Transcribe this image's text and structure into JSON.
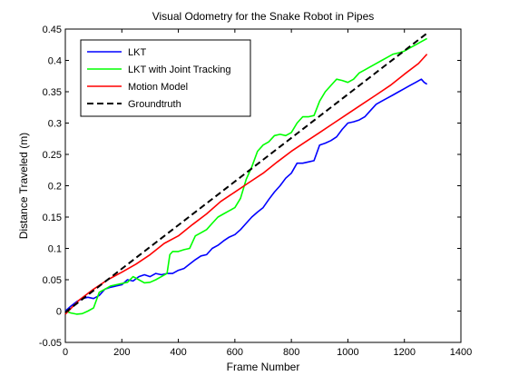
{
  "figure": {
    "title": "Visual Odometry for the Snake Robot in Pipes"
  },
  "chart_data": {
    "type": "line",
    "title": "Visual Odometry for the Snake Robot in Pipes",
    "xlabel": "Frame Number",
    "ylabel": "Distance Traveled (m)",
    "xlim": [
      0,
      1400
    ],
    "ylim": [
      -0.05,
      0.45
    ],
    "xticks": [
      0,
      200,
      400,
      600,
      800,
      1000,
      1200,
      1400
    ],
    "xtick_labels": [
      "0",
      "200",
      "400",
      "600",
      "800",
      "1000",
      "1200",
      "1400"
    ],
    "yticks": [
      -0.05,
      0,
      0.05,
      0.1,
      0.15,
      0.2,
      0.25,
      0.3,
      0.35,
      0.4,
      0.45
    ],
    "ytick_labels": [
      "-0.05",
      "0",
      "0.05",
      "0.1",
      "0.15",
      "0.2",
      "0.25",
      "0.3",
      "0.35",
      "0.4",
      "0.45"
    ],
    "grid": false,
    "legend_position": "top-left",
    "series": [
      {
        "name": "LKT",
        "color": "#0000ff",
        "dash": "solid",
        "x": [
          0,
          20,
          40,
          60,
          80,
          100,
          120,
          140,
          160,
          180,
          200,
          220,
          240,
          260,
          280,
          300,
          320,
          340,
          360,
          380,
          400,
          420,
          440,
          460,
          480,
          500,
          520,
          540,
          560,
          580,
          600,
          620,
          640,
          660,
          680,
          700,
          720,
          740,
          760,
          780,
          800,
          820,
          840,
          860,
          880,
          900,
          920,
          940,
          960,
          980,
          1000,
          1020,
          1040,
          1060,
          1080,
          1100,
          1120,
          1140,
          1160,
          1180,
          1200,
          1220,
          1240,
          1260,
          1270,
          1280
        ],
        "y": [
          0.0,
          0.008,
          0.015,
          0.02,
          0.022,
          0.02,
          0.025,
          0.035,
          0.038,
          0.04,
          0.042,
          0.05,
          0.048,
          0.055,
          0.058,
          0.055,
          0.06,
          0.058,
          0.06,
          0.06,
          0.065,
          0.068,
          0.075,
          0.082,
          0.088,
          0.09,
          0.1,
          0.105,
          0.112,
          0.118,
          0.122,
          0.13,
          0.14,
          0.15,
          0.158,
          0.165,
          0.178,
          0.19,
          0.2,
          0.212,
          0.22,
          0.236,
          0.236,
          0.238,
          0.24,
          0.265,
          0.268,
          0.272,
          0.278,
          0.29,
          0.3,
          0.302,
          0.305,
          0.31,
          0.32,
          0.33,
          0.335,
          0.34,
          0.345,
          0.35,
          0.355,
          0.36,
          0.365,
          0.37,
          0.365,
          0.362
        ]
      },
      {
        "name": "LKT with Joint Tracking",
        "color": "#00ff00",
        "dash": "solid",
        "x": [
          0,
          20,
          40,
          60,
          80,
          100,
          120,
          140,
          160,
          180,
          200,
          220,
          240,
          260,
          280,
          300,
          320,
          340,
          360,
          370,
          380,
          400,
          420,
          440,
          460,
          480,
          500,
          520,
          540,
          560,
          580,
          600,
          620,
          640,
          660,
          680,
          700,
          720,
          740,
          760,
          780,
          800,
          820,
          840,
          860,
          880,
          900,
          920,
          940,
          960,
          980,
          1000,
          1020,
          1040,
          1060,
          1080,
          1100,
          1120,
          1140,
          1160,
          1180,
          1200,
          1220,
          1240,
          1260,
          1280
        ],
        "y": [
          0.0,
          -0.003,
          -0.005,
          -0.004,
          0.0,
          0.005,
          0.03,
          0.035,
          0.04,
          0.042,
          0.044,
          0.046,
          0.055,
          0.05,
          0.045,
          0.046,
          0.05,
          0.055,
          0.06,
          0.09,
          0.095,
          0.095,
          0.098,
          0.1,
          0.12,
          0.125,
          0.13,
          0.14,
          0.15,
          0.155,
          0.16,
          0.165,
          0.18,
          0.21,
          0.23,
          0.255,
          0.265,
          0.27,
          0.28,
          0.282,
          0.28,
          0.285,
          0.3,
          0.31,
          0.31,
          0.312,
          0.335,
          0.35,
          0.36,
          0.37,
          0.368,
          0.365,
          0.37,
          0.38,
          0.385,
          0.39,
          0.395,
          0.4,
          0.405,
          0.41,
          0.412,
          0.415,
          0.42,
          0.425,
          0.43,
          0.435
        ]
      },
      {
        "name": "Motion Model",
        "color": "#ff0000",
        "dash": "solid",
        "x": [
          0,
          50,
          100,
          150,
          200,
          250,
          300,
          350,
          400,
          450,
          500,
          550,
          600,
          650,
          700,
          750,
          800,
          850,
          900,
          950,
          1000,
          1050,
          1100,
          1150,
          1200,
          1250,
          1280
        ],
        "y": [
          -0.005,
          0.018,
          0.035,
          0.05,
          0.062,
          0.075,
          0.09,
          0.108,
          0.12,
          0.138,
          0.155,
          0.175,
          0.19,
          0.205,
          0.22,
          0.238,
          0.255,
          0.27,
          0.285,
          0.3,
          0.315,
          0.33,
          0.345,
          0.36,
          0.378,
          0.395,
          0.41
        ]
      },
      {
        "name": "Groundtruth",
        "color": "#000000",
        "dash": "dashed",
        "x": [
          0,
          1285
        ],
        "y": [
          -0.002,
          0.445
        ]
      }
    ]
  }
}
